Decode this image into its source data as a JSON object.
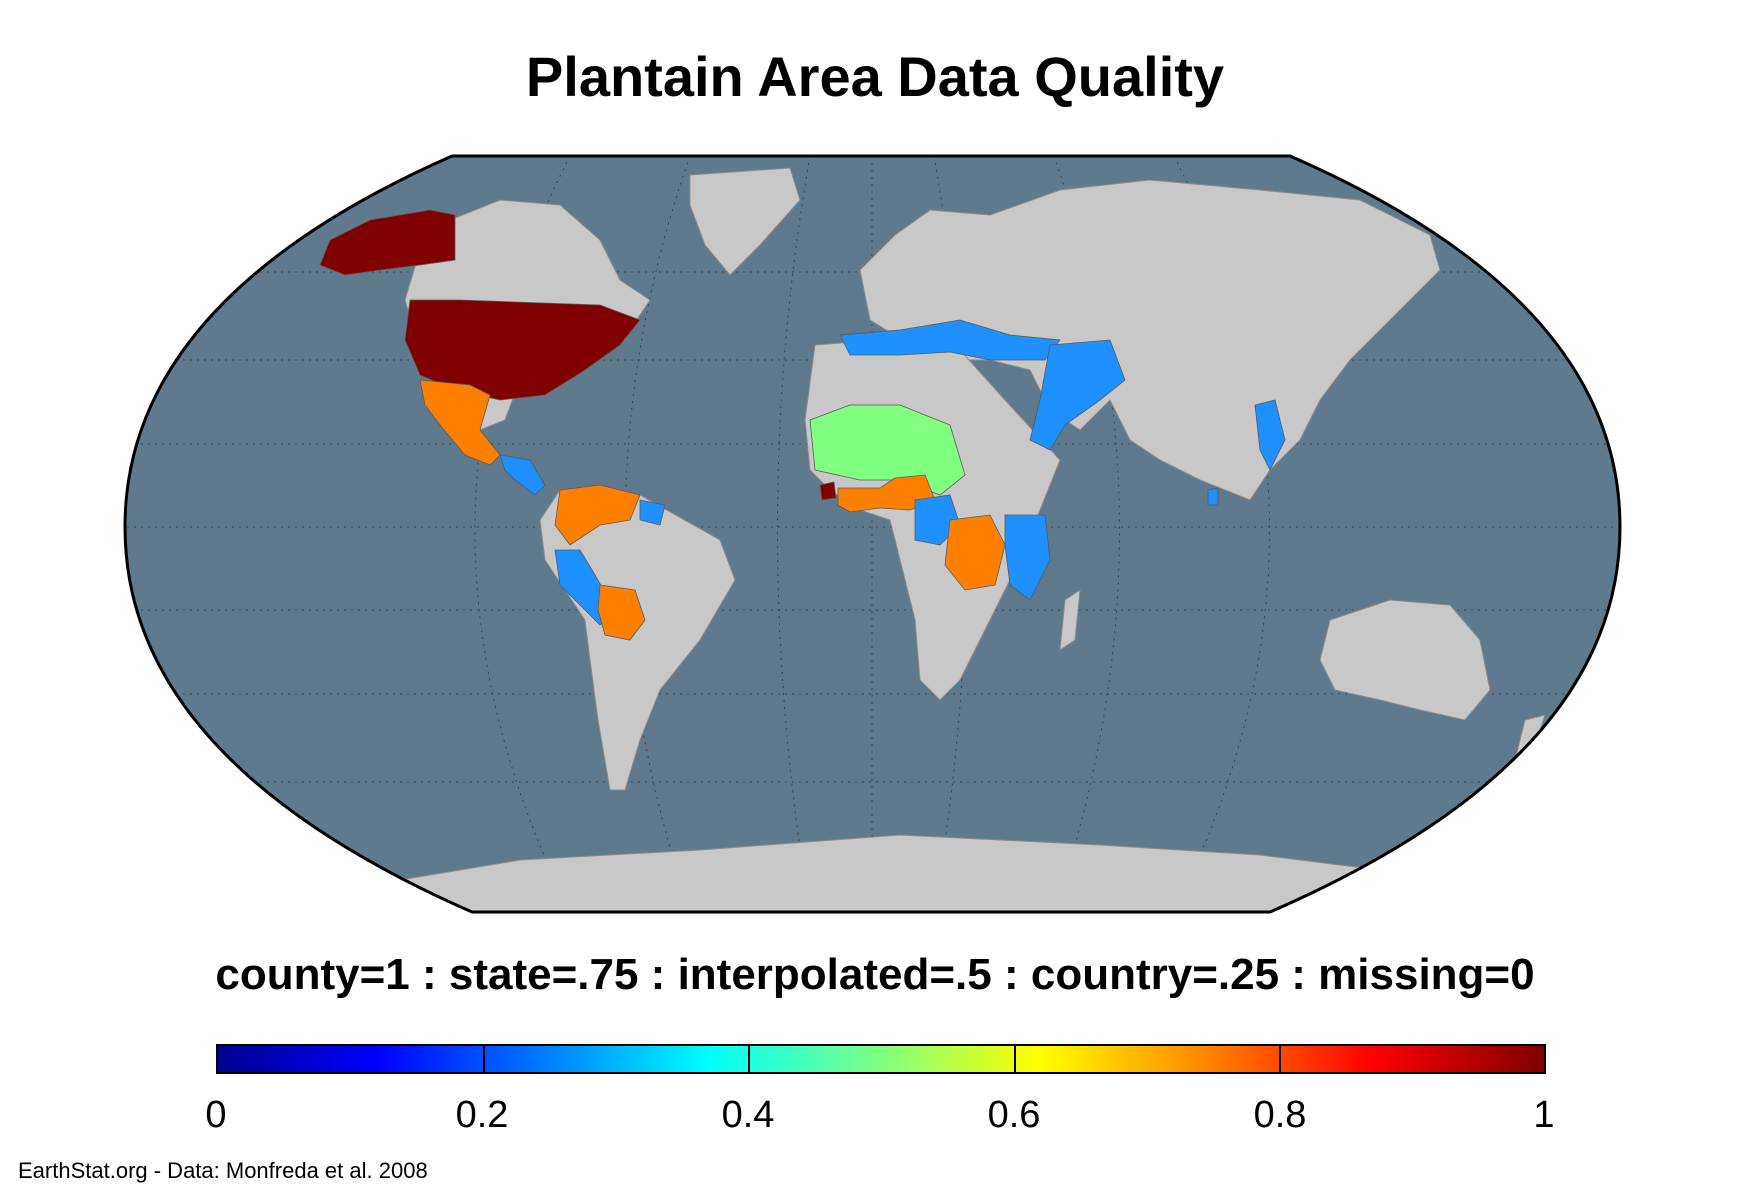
{
  "title": "Plantain Area Data Quality",
  "subtitle": "county=1 : state=.75 : interpolated=.5 : country=.25 : missing=0",
  "credit": "EarthStat.org - Data: Monfreda et al. 2008",
  "colors": {
    "ocean": "#5f7a8c",
    "land_missing": "#c8c8c8",
    "county": "#800000",
    "state": "#ff8000",
    "interpolated": "#80ff80",
    "country": "#1e90ff"
  },
  "colorbar": {
    "min": 0,
    "max": 1,
    "ticks": [
      "0",
      "0.2",
      "0.4",
      "0.6",
      "0.8",
      "1"
    ],
    "colormap": "jet"
  },
  "chart_data": {
    "type": "map",
    "title": "Plantain Area Data Quality",
    "projection": "Robinson",
    "value_meaning": {
      "county": 1,
      "state": 0.75,
      "interpolated": 0.5,
      "country": 0.25,
      "missing": 0
    },
    "regions": [
      {
        "name": "United States & Alaska",
        "value": 1
      },
      {
        "name": "Sierra Leone",
        "value": 1
      },
      {
        "name": "Mexico",
        "value": 0.75
      },
      {
        "name": "Colombia",
        "value": 0.75
      },
      {
        "name": "Venezuela",
        "value": 0.75
      },
      {
        "name": "Bolivia",
        "value": 0.75
      },
      {
        "name": "DR Congo",
        "value": 0.75
      },
      {
        "name": "Côte d'Ivoire",
        "value": 0.75
      },
      {
        "name": "Ghana",
        "value": 0.75
      },
      {
        "name": "Nigeria",
        "value": 0.75
      },
      {
        "name": "West Sahel",
        "value": 0.5
      },
      {
        "name": "Central America",
        "value": 0.25
      },
      {
        "name": "Ecuador & Peru",
        "value": 0.25
      },
      {
        "name": "Guyana",
        "value": 0.25
      },
      {
        "name": "Cameroon",
        "value": 0.25
      },
      {
        "name": "East Africa",
        "value": 0.25
      },
      {
        "name": "Mediterranean",
        "value": 0.25
      },
      {
        "name": "Middle East",
        "value": 0.25
      },
      {
        "name": "Myanmar",
        "value": 0.25
      },
      {
        "name": "Sri Lanka",
        "value": 0.25
      }
    ]
  }
}
